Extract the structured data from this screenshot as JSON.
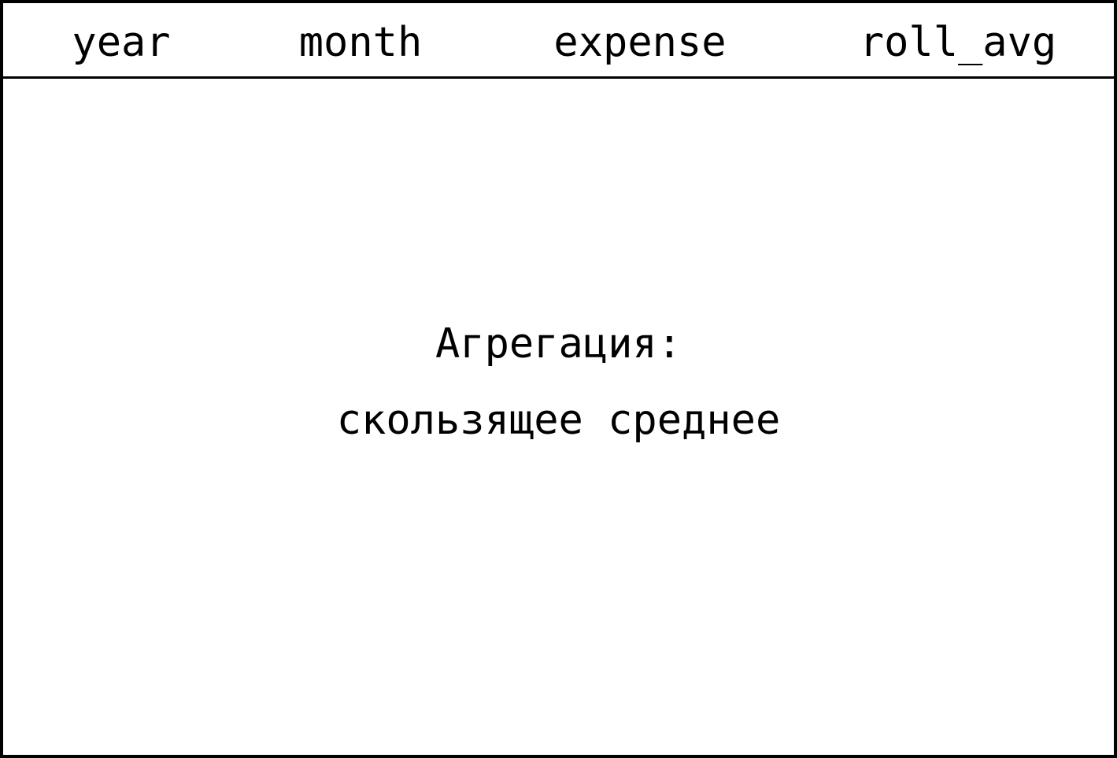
{
  "table": {
    "columns": [
      "year",
      "month",
      "expense",
      "roll_avg"
    ]
  },
  "note": {
    "line1": "Агрегация:",
    "line2": "скользящее среднее"
  },
  "colors": {
    "border": "#000000",
    "background": "#ffffff",
    "text": "#000000"
  }
}
